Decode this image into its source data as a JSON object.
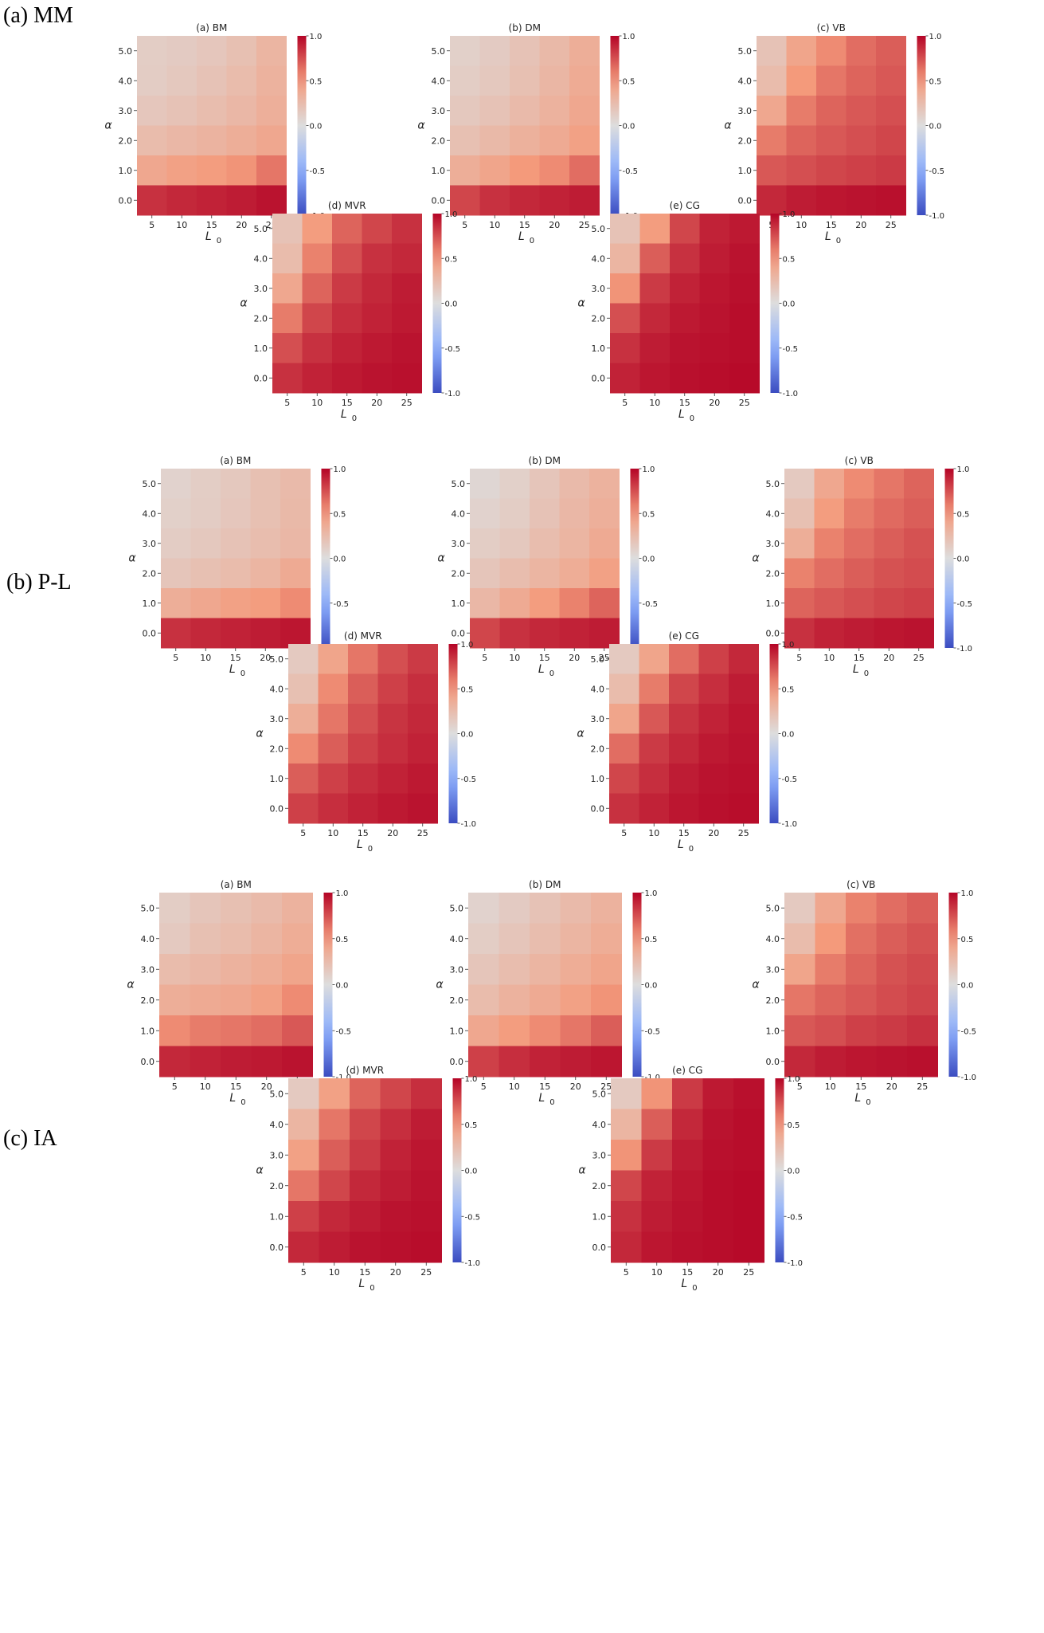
{
  "figure": {
    "sections": [
      {
        "label": "(a) MM",
        "panels": [
          {
            "title": "(a) BM",
            "values": [
              [
                0.12,
                0.14,
                0.17,
                0.22,
                0.3
              ],
              [
                0.13,
                0.16,
                0.2,
                0.25,
                0.32
              ],
              [
                0.17,
                0.2,
                0.24,
                0.28,
                0.34
              ],
              [
                0.25,
                0.28,
                0.31,
                0.35,
                0.4
              ],
              [
                0.4,
                0.45,
                0.48,
                0.52,
                0.62
              ],
              [
                0.85,
                0.88,
                0.9,
                0.92,
                0.95
              ]
            ]
          },
          {
            "title": "(b) DM",
            "values": [
              [
                0.1,
                0.14,
                0.2,
                0.27,
                0.35
              ],
              [
                0.12,
                0.16,
                0.22,
                0.29,
                0.37
              ],
              [
                0.16,
                0.2,
                0.26,
                0.32,
                0.4
              ],
              [
                0.22,
                0.27,
                0.33,
                0.38,
                0.45
              ],
              [
                0.35,
                0.42,
                0.5,
                0.55,
                0.65
              ],
              [
                0.78,
                0.85,
                0.88,
                0.9,
                0.92
              ]
            ]
          },
          {
            "title": "(c) VB",
            "values": [
              [
                0.2,
                0.42,
                0.55,
                0.65,
                0.7
              ],
              [
                0.25,
                0.5,
                0.62,
                0.68,
                0.72
              ],
              [
                0.4,
                0.6,
                0.68,
                0.72,
                0.75
              ],
              [
                0.6,
                0.68,
                0.72,
                0.75,
                0.78
              ],
              [
                0.72,
                0.75,
                0.78,
                0.8,
                0.82
              ],
              [
                0.88,
                0.92,
                0.94,
                0.95,
                0.96
              ]
            ]
          },
          {
            "title": "(d) MVR",
            "values": [
              [
                0.2,
                0.48,
                0.68,
                0.78,
                0.85
              ],
              [
                0.25,
                0.58,
                0.75,
                0.85,
                0.88
              ],
              [
                0.4,
                0.68,
                0.82,
                0.88,
                0.92
              ],
              [
                0.6,
                0.78,
                0.86,
                0.9,
                0.93
              ],
              [
                0.75,
                0.85,
                0.9,
                0.93,
                0.95
              ],
              [
                0.85,
                0.9,
                0.93,
                0.95,
                0.96
              ]
            ]
          },
          {
            "title": "(e) CG",
            "values": [
              [
                0.2,
                0.48,
                0.78,
                0.9,
                0.93
              ],
              [
                0.3,
                0.7,
                0.85,
                0.92,
                0.95
              ],
              [
                0.52,
                0.82,
                0.9,
                0.94,
                0.96
              ],
              [
                0.75,
                0.88,
                0.93,
                0.95,
                0.97
              ],
              [
                0.85,
                0.92,
                0.95,
                0.96,
                0.97
              ],
              [
                0.9,
                0.94,
                0.96,
                0.97,
                0.98
              ]
            ]
          }
        ]
      },
      {
        "label": "(b) P-L",
        "panels": [
          {
            "title": "(a) BM",
            "values": [
              [
                0.08,
                0.12,
                0.16,
                0.22,
                0.26
              ],
              [
                0.1,
                0.13,
                0.17,
                0.22,
                0.27
              ],
              [
                0.13,
                0.16,
                0.2,
                0.24,
                0.28
              ],
              [
                0.18,
                0.22,
                0.25,
                0.3,
                0.38
              ],
              [
                0.35,
                0.4,
                0.45,
                0.48,
                0.55
              ],
              [
                0.85,
                0.88,
                0.9,
                0.92,
                0.94
              ]
            ]
          },
          {
            "title": "(b) DM",
            "values": [
              [
                0.05,
                0.1,
                0.18,
                0.26,
                0.32
              ],
              [
                0.08,
                0.12,
                0.2,
                0.28,
                0.34
              ],
              [
                0.12,
                0.16,
                0.24,
                0.3,
                0.38
              ],
              [
                0.18,
                0.24,
                0.3,
                0.36,
                0.45
              ],
              [
                0.28,
                0.38,
                0.48,
                0.58,
                0.68
              ],
              [
                0.78,
                0.85,
                0.88,
                0.9,
                0.92
              ]
            ]
          },
          {
            "title": "(c) VB",
            "values": [
              [
                0.15,
                0.4,
                0.55,
                0.62,
                0.68
              ],
              [
                0.22,
                0.48,
                0.6,
                0.66,
                0.7
              ],
              [
                0.35,
                0.58,
                0.65,
                0.7,
                0.74
              ],
              [
                0.58,
                0.65,
                0.7,
                0.74,
                0.76
              ],
              [
                0.68,
                0.72,
                0.75,
                0.78,
                0.8
              ],
              [
                0.85,
                0.9,
                0.92,
                0.94,
                0.95
              ]
            ]
          },
          {
            "title": "(d) MVR",
            "values": [
              [
                0.15,
                0.42,
                0.62,
                0.75,
                0.82
              ],
              [
                0.22,
                0.55,
                0.7,
                0.8,
                0.86
              ],
              [
                0.35,
                0.62,
                0.75,
                0.84,
                0.88
              ],
              [
                0.55,
                0.7,
                0.8,
                0.86,
                0.9
              ],
              [
                0.7,
                0.8,
                0.86,
                0.9,
                0.93
              ],
              [
                0.8,
                0.86,
                0.9,
                0.93,
                0.95
              ]
            ]
          },
          {
            "title": "(e) CG",
            "values": [
              [
                0.15,
                0.42,
                0.65,
                0.8,
                0.88
              ],
              [
                0.25,
                0.6,
                0.78,
                0.86,
                0.92
              ],
              [
                0.42,
                0.72,
                0.84,
                0.9,
                0.94
              ],
              [
                0.65,
                0.82,
                0.88,
                0.93,
                0.95
              ],
              [
                0.78,
                0.86,
                0.92,
                0.95,
                0.96
              ],
              [
                0.85,
                0.9,
                0.94,
                0.96,
                0.97
              ]
            ]
          }
        ]
      },
      {
        "label": "(c) IA",
        "panels": [
          {
            "title": "(a) BM",
            "values": [
              [
                0.12,
                0.18,
                0.22,
                0.26,
                0.32
              ],
              [
                0.15,
                0.22,
                0.25,
                0.3,
                0.36
              ],
              [
                0.25,
                0.28,
                0.32,
                0.36,
                0.42
              ],
              [
                0.35,
                0.38,
                0.4,
                0.45,
                0.55
              ],
              [
                0.55,
                0.6,
                0.62,
                0.65,
                0.72
              ],
              [
                0.88,
                0.9,
                0.92,
                0.93,
                0.95
              ]
            ]
          },
          {
            "title": "(b) DM",
            "values": [
              [
                0.08,
                0.14,
                0.2,
                0.26,
                0.32
              ],
              [
                0.12,
                0.18,
                0.24,
                0.3,
                0.36
              ],
              [
                0.18,
                0.24,
                0.3,
                0.36,
                0.42
              ],
              [
                0.25,
                0.32,
                0.38,
                0.45,
                0.52
              ],
              [
                0.4,
                0.48,
                0.55,
                0.62,
                0.7
              ],
              [
                0.8,
                0.86,
                0.9,
                0.92,
                0.94
              ]
            ]
          },
          {
            "title": "(c) VB",
            "values": [
              [
                0.15,
                0.4,
                0.58,
                0.65,
                0.7
              ],
              [
                0.25,
                0.5,
                0.64,
                0.7,
                0.74
              ],
              [
                0.42,
                0.6,
                0.68,
                0.74,
                0.77
              ],
              [
                0.62,
                0.68,
                0.72,
                0.76,
                0.79
              ],
              [
                0.72,
                0.75,
                0.8,
                0.82,
                0.85
              ],
              [
                0.88,
                0.92,
                0.94,
                0.95,
                0.96
              ]
            ]
          },
          {
            "title": "(d) MVR",
            "values": [
              [
                0.15,
                0.45,
                0.68,
                0.78,
                0.86
              ],
              [
                0.3,
                0.62,
                0.78,
                0.86,
                0.92
              ],
              [
                0.45,
                0.7,
                0.82,
                0.9,
                0.94
              ],
              [
                0.62,
                0.78,
                0.88,
                0.92,
                0.95
              ],
              [
                0.8,
                0.88,
                0.92,
                0.95,
                0.96
              ],
              [
                0.88,
                0.92,
                0.95,
                0.96,
                0.97
              ]
            ]
          },
          {
            "title": "(e) CG",
            "values": [
              [
                0.15,
                0.52,
                0.82,
                0.93,
                0.96
              ],
              [
                0.3,
                0.7,
                0.88,
                0.95,
                0.97
              ],
              [
                0.52,
                0.82,
                0.92,
                0.96,
                0.97
              ],
              [
                0.78,
                0.9,
                0.94,
                0.97,
                0.98
              ],
              [
                0.85,
                0.92,
                0.95,
                0.97,
                0.98
              ],
              [
                0.88,
                0.94,
                0.96,
                0.97,
                0.98
              ]
            ]
          }
        ]
      }
    ]
  },
  "chart_data": {
    "type": "heatmap",
    "x_ticks": [
      "5",
      "10",
      "15",
      "20",
      "25"
    ],
    "y_ticks": [
      "5.0",
      "4.0",
      "3.0",
      "2.0",
      "1.0",
      "0.0"
    ],
    "xlabel_main": "L",
    "xlabel_sub": "0",
    "ylabel": "α",
    "colormap": "coolwarm",
    "colorbar_ticks": [
      "1.0",
      "0.5",
      "0.0",
      "-0.5",
      "-1.0"
    ],
    "vmin": -1.0,
    "vmax": 1.0
  }
}
